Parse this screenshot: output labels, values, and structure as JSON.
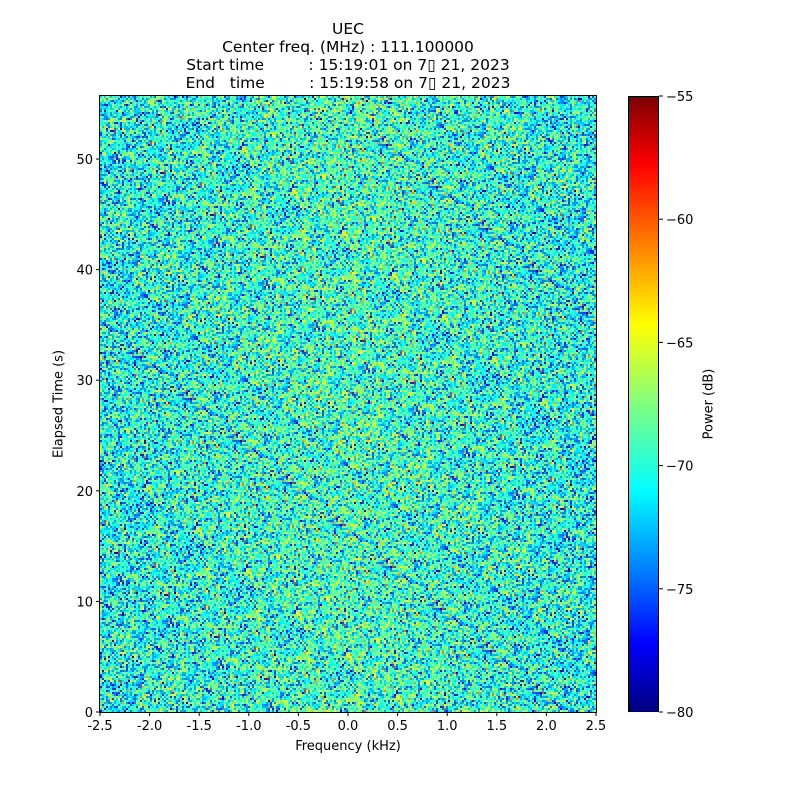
{
  "chart_data": {
    "type": "heatmap",
    "title_lines": [
      "UEC",
      "Center freq. (MHz) : 111.100000",
      "Start time         : 15:19:01 on 7▯ 21, 2023",
      "End   time         : 15:19:58 on 7▯ 21, 2023"
    ],
    "xlabel": "Frequency (kHz)",
    "ylabel": "Elapsed Time (s)",
    "xlim": [
      -2.5,
      2.5
    ],
    "ylim": [
      0,
      55.7
    ],
    "xticks": [
      -2.5,
      -2.0,
      -1.5,
      -1.0,
      -0.5,
      0.0,
      0.5,
      1.0,
      1.5,
      2.0,
      2.5
    ],
    "xtick_labels": [
      "-2.5",
      "-2.0",
      "-1.5",
      "-1.0",
      "-0.5",
      "0.0",
      "0.5",
      "1.0",
      "1.5",
      "2.0",
      "2.5"
    ],
    "yticks": [
      0,
      10,
      20,
      30,
      40,
      50
    ],
    "ytick_labels": [
      "0",
      "10",
      "20",
      "30",
      "40",
      "50"
    ],
    "colorbar": {
      "label": "Power (dB)",
      "colormap": "jet",
      "range": [
        -80,
        -55
      ],
      "ticks": [
        -80,
        -75,
        -70,
        -65,
        -60,
        -55
      ],
      "tick_labels": [
        "−80",
        "−75",
        "−70",
        "−65",
        "−60",
        "−55"
      ]
    },
    "grid": false,
    "data_description": {
      "freq_bins": 248,
      "time_bins": 308,
      "mean_power_db": -70.5,
      "std_power_db": 3.2
    }
  }
}
